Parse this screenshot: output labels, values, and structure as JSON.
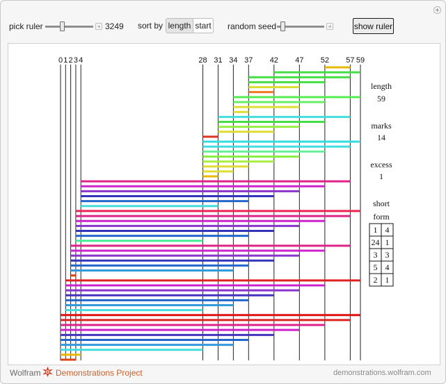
{
  "controls": {
    "pick_ruler_label": "pick ruler",
    "pick_ruler_value": "3249",
    "pick_ruler_fraction": 0.35,
    "sort_by_label": "sort by",
    "sort_options": [
      "length",
      "start"
    ],
    "sort_selected": "length",
    "random_seed_label": "random seed",
    "random_seed_fraction": 0.12,
    "show_ruler_label": "show ruler"
  },
  "ruler": {
    "length": 59,
    "marks": [
      0,
      1,
      2,
      3,
      4,
      28,
      31,
      34,
      37,
      42,
      47,
      52,
      57,
      59
    ]
  },
  "stats": {
    "length_label": "length",
    "length_value": "59",
    "marks_label": "marks",
    "marks_value": "14",
    "excess_label": "excess",
    "excess_value": "1",
    "short_form_label_1": "short",
    "short_form_label_2": "form",
    "short_form": [
      [
        "1",
        "4"
      ],
      [
        "24",
        "1"
      ],
      [
        "3",
        "3"
      ],
      [
        "5",
        "4"
      ],
      [
        "2",
        "1"
      ]
    ]
  },
  "differences": [
    {
      "from": 52,
      "to": 57,
      "color": "#e8b800"
    },
    {
      "from": 42,
      "to": 59,
      "color": "#44dd44"
    },
    {
      "from": 37,
      "to": 57,
      "color": "#44dd44"
    },
    {
      "from": 37,
      "to": 52,
      "color": "#44dd44"
    },
    {
      "from": 37,
      "to": 47,
      "color": "#dddd33"
    },
    {
      "from": 37,
      "to": 42,
      "color": "#ee7722"
    },
    {
      "from": 34,
      "to": 59,
      "color": "#55ee55"
    },
    {
      "from": 34,
      "to": 52,
      "color": "#66ee66"
    },
    {
      "from": 34,
      "to": 47,
      "color": "#dddd33"
    },
    {
      "from": 34,
      "to": 37,
      "color": "#dddd33"
    },
    {
      "from": 31,
      "to": 57,
      "color": "#44dddd"
    },
    {
      "from": 31,
      "to": 52,
      "color": "#44dd44"
    },
    {
      "from": 31,
      "to": 47,
      "color": "#99ee44"
    },
    {
      "from": 31,
      "to": 42,
      "color": "#dddd33"
    },
    {
      "from": 28,
      "to": 31,
      "color": "#dd3322"
    },
    {
      "from": 28,
      "to": 59,
      "color": "#33dddd"
    },
    {
      "from": 28,
      "to": 57,
      "color": "#44dddd"
    },
    {
      "from": 28,
      "to": 52,
      "color": "#66ee99"
    },
    {
      "from": 28,
      "to": 47,
      "color": "#88ee44"
    },
    {
      "from": 28,
      "to": 42,
      "color": "#aaee44"
    },
    {
      "from": 28,
      "to": 37,
      "color": "#dddd33"
    },
    {
      "from": 28,
      "to": 34,
      "color": "#dddd33"
    },
    {
      "from": 28,
      "to": 31,
      "color": "#e8b800"
    },
    {
      "from": 4,
      "to": 57,
      "color": "#dd2288"
    },
    {
      "from": 4,
      "to": 52,
      "color": "#cc22cc"
    },
    {
      "from": 4,
      "to": 47,
      "color": "#8833cc"
    },
    {
      "from": 4,
      "to": 42,
      "color": "#3333bb"
    },
    {
      "from": 4,
      "to": 37,
      "color": "#2266cc"
    },
    {
      "from": 4,
      "to": 31,
      "color": "#44dddd"
    },
    {
      "from": 3,
      "to": 59,
      "color": "#ee2255"
    },
    {
      "from": 3,
      "to": 57,
      "color": "#dd2288"
    },
    {
      "from": 3,
      "to": 52,
      "color": "#cc22cc"
    },
    {
      "from": 3,
      "to": 47,
      "color": "#8833cc"
    },
    {
      "from": 3,
      "to": 42,
      "color": "#3333bb"
    },
    {
      "from": 3,
      "to": 37,
      "color": "#2266cc"
    },
    {
      "from": 3,
      "to": 28,
      "color": "#44ee99"
    },
    {
      "from": 2,
      "to": 57,
      "color": "#dd2288"
    },
    {
      "from": 2,
      "to": 52,
      "color": "#cc22cc"
    },
    {
      "from": 2,
      "to": 47,
      "color": "#8833cc"
    },
    {
      "from": 2,
      "to": 42,
      "color": "#3333bb"
    },
    {
      "from": 2,
      "to": 37,
      "color": "#2266cc"
    },
    {
      "from": 2,
      "to": 34,
      "color": "#3399dd"
    },
    {
      "from": 2,
      "to": 3,
      "color": "#dd4411"
    },
    {
      "from": 1,
      "to": 59,
      "color": "#dd2222"
    },
    {
      "from": 1,
      "to": 52,
      "color": "#cc22cc"
    },
    {
      "from": 1,
      "to": 47,
      "color": "#8833cc"
    },
    {
      "from": 1,
      "to": 42,
      "color": "#4433bb"
    },
    {
      "from": 1,
      "to": 37,
      "color": "#2266cc"
    },
    {
      "from": 1,
      "to": 34,
      "color": "#3399dd"
    },
    {
      "from": 1,
      "to": 28,
      "color": "#44dddd"
    },
    {
      "from": 0,
      "to": 59,
      "color": "#dd1111"
    },
    {
      "from": 0,
      "to": 57,
      "color": "#dd2222"
    },
    {
      "from": 0,
      "to": 52,
      "color": "#dd2288"
    },
    {
      "from": 0,
      "to": 47,
      "color": "#cc22cc"
    },
    {
      "from": 0,
      "to": 42,
      "color": "#4433bb"
    },
    {
      "from": 0,
      "to": 37,
      "color": "#2266cc"
    },
    {
      "from": 0,
      "to": 34,
      "color": "#3399dd"
    },
    {
      "from": 0,
      "to": 28,
      "color": "#44dddd"
    },
    {
      "from": 0,
      "to": 4,
      "color": "#e8b800"
    },
    {
      "from": 0,
      "to": 3,
      "color": "#dd4411"
    }
  ],
  "footer": {
    "wolfram": "Wolfram",
    "demos": "Demonstrations Project",
    "url": "demonstrations.wolfram.com"
  }
}
